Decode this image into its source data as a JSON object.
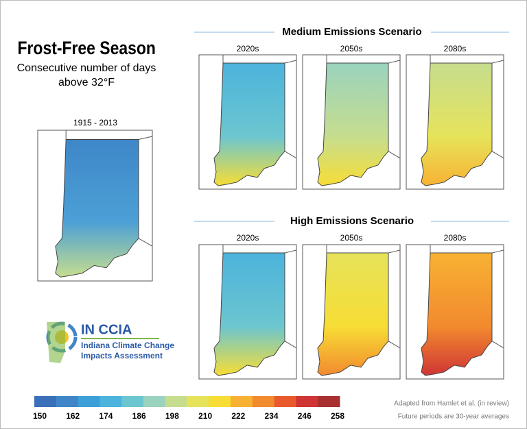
{
  "title": "Frost-Free Season",
  "subtitle": [
    "Consecutive number of days",
    "above 32°F"
  ],
  "baseline": {
    "label": "1915 - 2013"
  },
  "scenarios": [
    {
      "title": "Medium Emissions Scenario",
      "periods": [
        "2020s",
        "2050s",
        "2080s"
      ]
    },
    {
      "title": "High Emissions Scenario",
      "periods": [
        "2020s",
        "2050s",
        "2080s"
      ]
    }
  ],
  "colorbar": {
    "colors": [
      "#3a6fba",
      "#3e86c8",
      "#3d9fd8",
      "#4cb3dc",
      "#6cc6cf",
      "#9ad3be",
      "#c6dd8e",
      "#e6e35a",
      "#f7dd35",
      "#f8b233",
      "#f28a2e",
      "#e85a2c",
      "#cf3535",
      "#a8302f"
    ],
    "ticks": [
      150,
      162,
      174,
      186,
      198,
      210,
      222,
      234,
      246,
      258
    ]
  },
  "logo": {
    "name": "IN CCIA",
    "lines": [
      "Indiana Climate Change",
      "Impacts Assessment"
    ]
  },
  "credits": [
    "Adapted from Hamlet et al. (in review)",
    "Future periods are 30-year averages"
  ]
}
